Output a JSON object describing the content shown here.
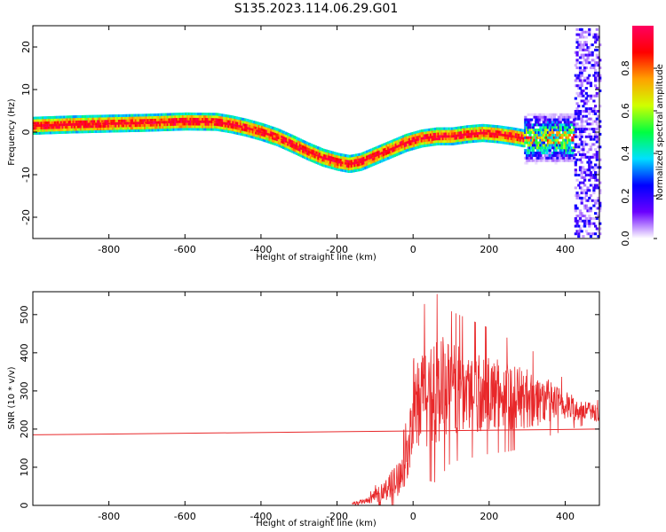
{
  "title": "S135.2023.114.06.29.G01",
  "chart_data": [
    {
      "type": "heatmap",
      "xlabel": "Height of straight line (km)",
      "ylabel": "Frequency (Hz)",
      "xlim": [
        -1000,
        490
      ],
      "ylim": [
        -25,
        25
      ],
      "xticks": [
        -800,
        -600,
        -400,
        -200,
        0,
        200,
        400
      ],
      "yticks": [
        20,
        10,
        0,
        -10,
        -20
      ],
      "ridge": {
        "x": [
          -1000,
          -900,
          -800,
          -700,
          -600,
          -520,
          -480,
          -440,
          -400,
          -360,
          -320,
          -280,
          -240,
          -200,
          -170,
          -140,
          -100,
          -60,
          -20,
          20,
          60,
          100,
          140,
          180,
          220,
          260,
          290
        ],
        "y": [
          1.5,
          1.8,
          2.0,
          2.2,
          2.5,
          2.4,
          1.8,
          1.0,
          0.0,
          -1.2,
          -2.8,
          -4.5,
          -6.0,
          -7.0,
          -7.5,
          -7.0,
          -5.5,
          -4.0,
          -2.5,
          -1.5,
          -1.0,
          -1.0,
          -0.5,
          -0.2,
          -0.5,
          -1.0,
          -1.5
        ]
      },
      "colorbar": {
        "label": "Normalized spectral amplitude",
        "range": [
          0,
          1
        ],
        "ticks": [
          "0.0",
          "0.2",
          "0.4",
          "0.6",
          "0.8"
        ],
        "colors": [
          "#ffffff",
          "#6a00ff",
          "#0000ff",
          "#00e0ff",
          "#00ff40",
          "#d0ff00",
          "#ffa000",
          "#ff0000",
          "#ff0060"
        ]
      }
    },
    {
      "type": "line",
      "xlabel": "Height of straight line (km)",
      "ylabel": "SNR (10 * v/v)",
      "xlim": [
        -1000,
        490
      ],
      "ylim": [
        0,
        560
      ],
      "xticks": [
        -800,
        -600,
        -400,
        -200,
        0,
        200,
        400
      ],
      "yticks": [
        0,
        100,
        200,
        300,
        400,
        500
      ],
      "color": "#e8282a",
      "envelope": {
        "x": [
          -160,
          -120,
          -80,
          -40,
          -20,
          -5,
          10,
          30,
          60,
          80,
          100,
          150,
          200,
          250,
          300,
          350,
          400,
          450,
          490
        ],
        "mid": [
          5,
          12,
          35,
          70,
          110,
          190,
          250,
          290,
          300,
          310,
          305,
          300,
          295,
          285,
          280,
          275,
          260,
          250,
          240
        ],
        "amp": [
          4,
          8,
          25,
          45,
          60,
          80,
          120,
          140,
          150,
          140,
          120,
          110,
          100,
          90,
          80,
          60,
          40,
          25,
          20
        ]
      },
      "baseline": {
        "x": [
          -1000,
          490
        ],
        "y": [
          185,
          200
        ]
      }
    }
  ]
}
